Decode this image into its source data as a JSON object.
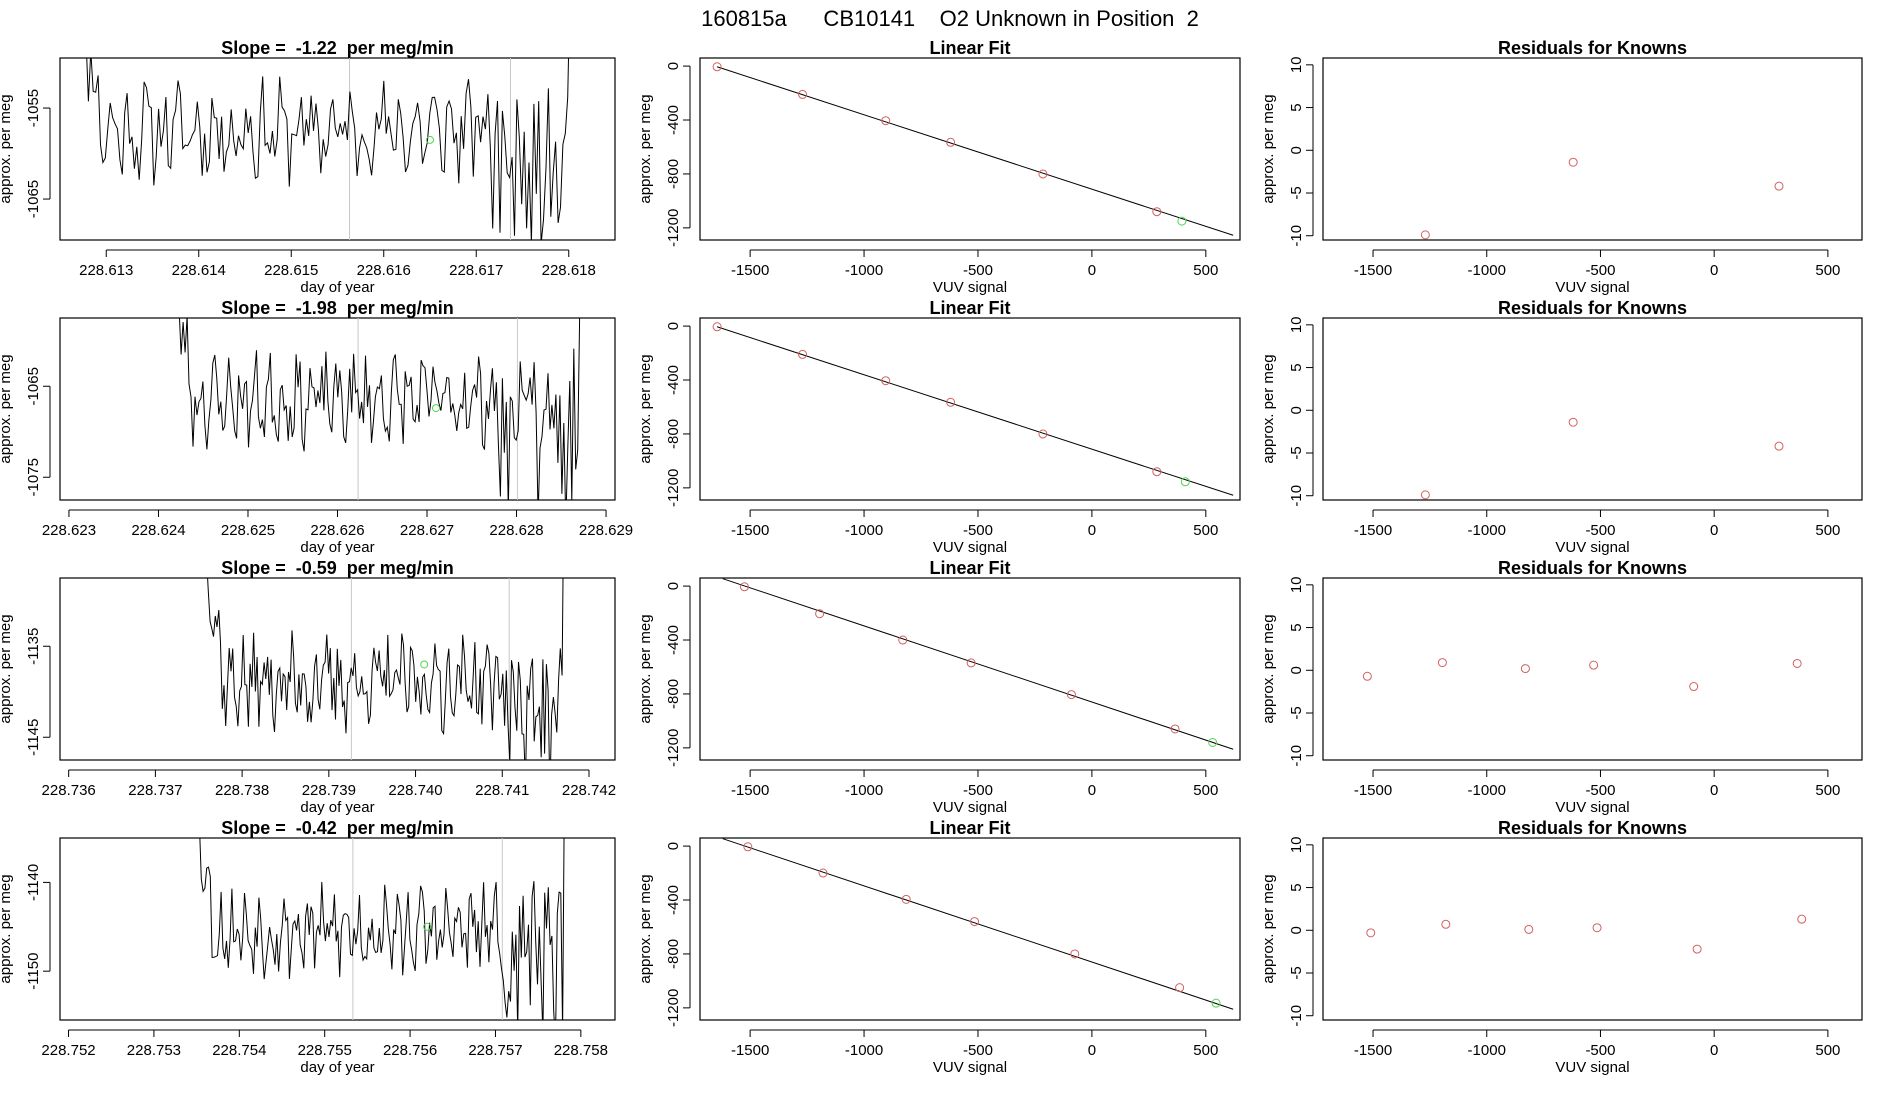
{
  "figure_title": "160815a      CB10141    O2 Unknown in Position  2",
  "colors": {
    "axis": "#000000",
    "trace": "#000000",
    "marker_line": "#c8c8c8",
    "known_point": "#d35f5f",
    "unknown_point": "#4fd64f"
  },
  "chart_data": [
    {
      "type": "line",
      "panel": "timeseries",
      "row": 1,
      "title": "Slope =  -1.22  per meg/min",
      "xlabel": "day of year",
      "ylabel": "approx. per meg",
      "xlim": [
        228.6125,
        228.6185
      ],
      "ylim": [
        -1069.5,
        -1049.5
      ],
      "xticks": [
        "228.613",
        "228.614",
        "228.615",
        "228.616",
        "228.617",
        "228.618"
      ],
      "xtick_values": [
        228.613,
        228.614,
        228.615,
        228.616,
        228.617,
        228.618
      ],
      "yticks": [
        "-1055",
        "-1065"
      ],
      "ytick_values": [
        -1055,
        -1065
      ],
      "markers_x": [
        228.61563,
        228.61737
      ],
      "trace_span": [
        228.61265,
        228.61812
      ],
      "trace_level": -1057.5,
      "trace_amp": 4.0,
      "seed": 11,
      "tail_start": 228.6171,
      "tail_end": 228.618,
      "highlight": {
        "x": 228.6165,
        "y": -1058.5
      }
    },
    {
      "type": "line",
      "panel": "timeseries",
      "row": 2,
      "title": "Slope =  -1.98  per meg/min",
      "xlabel": "day of year",
      "ylabel": "approx. per meg",
      "xlim": [
        228.6229,
        228.6291
      ],
      "ylim": [
        -1077.5,
        -1057.5
      ],
      "xticks": [
        "228.623",
        "228.624",
        "228.625",
        "228.626",
        "228.627",
        "228.628",
        "228.629"
      ],
      "xtick_values": [
        228.623,
        228.624,
        228.625,
        228.626,
        228.627,
        228.628,
        228.629
      ],
      "yticks": [
        "-1065",
        "-1075"
      ],
      "ytick_values": [
        -1065,
        -1075
      ],
      "markers_x": [
        228.62623,
        228.62801
      ],
      "trace_span": [
        228.62412,
        228.62875
      ],
      "trace_level": -1066.5,
      "trace_amp": 3.6,
      "seed": 23,
      "tail_start": 228.6278,
      "tail_end": 228.6287,
      "highlight": {
        "x": 228.6271,
        "y": -1067.4
      }
    },
    {
      "type": "line",
      "panel": "timeseries",
      "row": 3,
      "title": "Slope =  -0.59  per meg/min",
      "xlabel": "day of year",
      "ylabel": "approx. per meg",
      "xlim": [
        228.7359,
        228.7423
      ],
      "ylim": [
        -1147.5,
        -1127.5
      ],
      "xticks": [
        "228.736",
        "228.737",
        "228.738",
        "228.739",
        "228.740",
        "228.741",
        "228.742"
      ],
      "xtick_values": [
        228.736,
        228.737,
        228.738,
        228.739,
        228.74,
        228.741,
        228.742
      ],
      "yticks": [
        "-1135",
        "-1145"
      ],
      "ytick_values": [
        -1135,
        -1145
      ],
      "markers_x": [
        228.73926,
        228.74108
      ],
      "trace_span": [
        228.73755,
        228.74175
      ],
      "trace_level": -1139.0,
      "trace_amp": 3.8,
      "seed": 37,
      "tail_start": 228.741,
      "tail_end": 228.7417,
      "highlight": {
        "x": 228.7401,
        "y": -1137.0
      }
    },
    {
      "type": "line",
      "panel": "timeseries",
      "row": 4,
      "title": "Slope =  -0.42  per meg/min",
      "xlabel": "day of year",
      "ylabel": "approx. per meg",
      "xlim": [
        228.7519,
        228.7584
      ],
      "ylim": [
        -1155.5,
        -1135.0
      ],
      "xticks": [
        "228.752",
        "228.753",
        "228.754",
        "228.755",
        "228.756",
        "228.757",
        "228.758"
      ],
      "xtick_values": [
        228.752,
        228.753,
        228.754,
        228.755,
        228.756,
        228.757,
        228.758
      ],
      "yticks": [
        "-1140",
        "-1150"
      ],
      "ytick_values": [
        -1140,
        -1150
      ],
      "markers_x": [
        228.75533,
        228.75708
      ],
      "trace_span": [
        228.75345,
        228.75785
      ],
      "trace_level": -1145.5,
      "trace_amp": 3.6,
      "seed": 53,
      "tail_start": 228.7571,
      "tail_end": 228.7578,
      "highlight": {
        "x": 228.7562,
        "y": -1145.0
      }
    },
    {
      "type": "scatter",
      "panel": "linear_fit",
      "row": 1,
      "title": "Linear Fit",
      "xlabel": "VUV signal",
      "ylabel": "approx. per meg",
      "xlim": [
        -1720,
        650
      ],
      "ylim": [
        -1290,
        60
      ],
      "xticks": [
        "-1500",
        "-1000",
        "-500",
        "0",
        "500"
      ],
      "xtick_values": [
        -1500,
        -1000,
        -500,
        0,
        500
      ],
      "yticks": [
        "0",
        "-400",
        "-800",
        "-1200"
      ],
      "ytick_values": [
        0,
        -400,
        -800,
        -1200
      ],
      "known_x": [
        -1645,
        -1270,
        -905,
        -620,
        -215,
        285
      ],
      "known_y": [
        -5,
        -210,
        -405,
        -565,
        -800,
        -1080
      ],
      "unknown": {
        "x": 395,
        "y": -1150
      },
      "fit_line": {
        "x": [
          -1645,
          620
        ],
        "y": [
          -5,
          -1255
        ]
      }
    },
    {
      "type": "scatter",
      "panel": "linear_fit",
      "row": 2,
      "title": "Linear Fit",
      "xlabel": "VUV signal",
      "ylabel": "approx. per meg",
      "xlim": [
        -1720,
        650
      ],
      "ylim": [
        -1290,
        60
      ],
      "xticks": [
        "-1500",
        "-1000",
        "-500",
        "0",
        "500"
      ],
      "xtick_values": [
        -1500,
        -1000,
        -500,
        0,
        500
      ],
      "yticks": [
        "0",
        "-400",
        "-800",
        "-1200"
      ],
      "ytick_values": [
        0,
        -400,
        -800,
        -1200
      ],
      "known_x": [
        -1645,
        -1270,
        -905,
        -620,
        -215,
        285
      ],
      "known_y": [
        -5,
        -210,
        -405,
        -565,
        -800,
        -1080
      ],
      "unknown": {
        "x": 410,
        "y": -1155
      },
      "fit_line": {
        "x": [
          -1645,
          620
        ],
        "y": [
          -5,
          -1255
        ]
      }
    },
    {
      "type": "scatter",
      "panel": "linear_fit",
      "row": 3,
      "title": "Linear Fit",
      "xlabel": "VUV signal",
      "ylabel": "approx. per meg",
      "xlim": [
        -1720,
        650
      ],
      "ylim": [
        -1290,
        60
      ],
      "xticks": [
        "-1500",
        "-1000",
        "-500",
        "0",
        "500"
      ],
      "xtick_values": [
        -1500,
        -1000,
        -500,
        0,
        500
      ],
      "yticks": [
        "0",
        "-400",
        "-800",
        "-1200"
      ],
      "ytick_values": [
        0,
        -400,
        -800,
        -1200
      ],
      "known_x": [
        -1525,
        -1195,
        -830,
        -530,
        -90,
        365
      ],
      "known_y": [
        -5,
        -205,
        -400,
        -570,
        -805,
        -1060
      ],
      "unknown": {
        "x": 530,
        "y": -1160
      },
      "fit_line": {
        "x": [
          -1620,
          620
        ],
        "y": [
          55,
          -1210
        ]
      }
    },
    {
      "type": "scatter",
      "panel": "linear_fit",
      "row": 4,
      "title": "Linear Fit",
      "xlabel": "VUV signal",
      "ylabel": "approx. per meg",
      "xlim": [
        -1720,
        650
      ],
      "ylim": [
        -1290,
        60
      ],
      "xticks": [
        "-1500",
        "-1000",
        "-500",
        "0",
        "500"
      ],
      "xtick_values": [
        -1500,
        -1000,
        -500,
        0,
        500
      ],
      "yticks": [
        "0",
        "-400",
        "-800",
        "-1200"
      ],
      "ytick_values": [
        0,
        -400,
        -800,
        -1200
      ],
      "known_x": [
        -1510,
        -1180,
        -815,
        -515,
        -75,
        385
      ],
      "known_y": [
        -5,
        -200,
        -395,
        -560,
        -800,
        -1050
      ],
      "unknown": {
        "x": 545,
        "y": -1165
      },
      "fit_line": {
        "x": [
          -1620,
          620
        ],
        "y": [
          55,
          -1210
        ]
      }
    },
    {
      "type": "scatter",
      "panel": "residuals",
      "row": 1,
      "title": "Residuals for Knowns",
      "xlabel": "VUV signal",
      "ylabel": "approx. per meg",
      "xlim": [
        -1720,
        650
      ],
      "ylim": [
        -10.5,
        10.8
      ],
      "xticks": [
        "-1500",
        "-1000",
        "-500",
        "0",
        "500"
      ],
      "xtick_values": [
        -1500,
        -1000,
        -500,
        0,
        500
      ],
      "yticks": [
        "-10",
        "-5",
        "0",
        "5",
        "10"
      ],
      "ytick_values": [
        -10,
        -5,
        0,
        5,
        10
      ],
      "x": [
        -1270,
        -620,
        285
      ],
      "y": [
        -9.9,
        -1.4,
        -4.2
      ]
    },
    {
      "type": "scatter",
      "panel": "residuals",
      "row": 2,
      "title": "Residuals for Knowns",
      "xlabel": "VUV signal",
      "ylabel": "approx. per meg",
      "xlim": [
        -1720,
        650
      ],
      "ylim": [
        -10.5,
        10.8
      ],
      "xticks": [
        "-1500",
        "-1000",
        "-500",
        "0",
        "500"
      ],
      "xtick_values": [
        -1500,
        -1000,
        -500,
        0,
        500
      ],
      "yticks": [
        "-10",
        "-5",
        "0",
        "5",
        "10"
      ],
      "ytick_values": [
        -10,
        -5,
        0,
        5,
        10
      ],
      "x": [
        -1270,
        -620,
        285
      ],
      "y": [
        -9.9,
        -1.4,
        -4.2
      ]
    },
    {
      "type": "scatter",
      "panel": "residuals",
      "row": 3,
      "title": "Residuals for Knowns",
      "xlabel": "VUV signal",
      "ylabel": "approx. per meg",
      "xlim": [
        -1720,
        650
      ],
      "ylim": [
        -10.5,
        10.8
      ],
      "xticks": [
        "-1500",
        "-1000",
        "-500",
        "0",
        "500"
      ],
      "xtick_values": [
        -1500,
        -1000,
        -500,
        0,
        500
      ],
      "yticks": [
        "-10",
        "-5",
        "0",
        "5",
        "10"
      ],
      "ytick_values": [
        -10,
        -5,
        0,
        5,
        10
      ],
      "x": [
        -1525,
        -1195,
        -830,
        -530,
        -90,
        365
      ],
      "y": [
        -0.7,
        0.9,
        0.2,
        0.6,
        -1.9,
        0.8
      ]
    },
    {
      "type": "scatter",
      "panel": "residuals",
      "row": 4,
      "title": "Residuals for Knowns",
      "xlabel": "VUV signal",
      "ylabel": "approx. per meg",
      "xlim": [
        -1720,
        650
      ],
      "ylim": [
        -10.5,
        10.8
      ],
      "xticks": [
        "-1500",
        "-1000",
        "-500",
        "0",
        "500"
      ],
      "xtick_values": [
        -1500,
        -1000,
        -500,
        0,
        500
      ],
      "yticks": [
        "-10",
        "-5",
        "0",
        "5",
        "10"
      ],
      "ytick_values": [
        -10,
        -5,
        0,
        5,
        10
      ],
      "x": [
        -1510,
        -1180,
        -815,
        -515,
        -75,
        385
      ],
      "y": [
        -0.3,
        0.7,
        0.1,
        0.3,
        -2.2,
        1.3
      ]
    }
  ]
}
